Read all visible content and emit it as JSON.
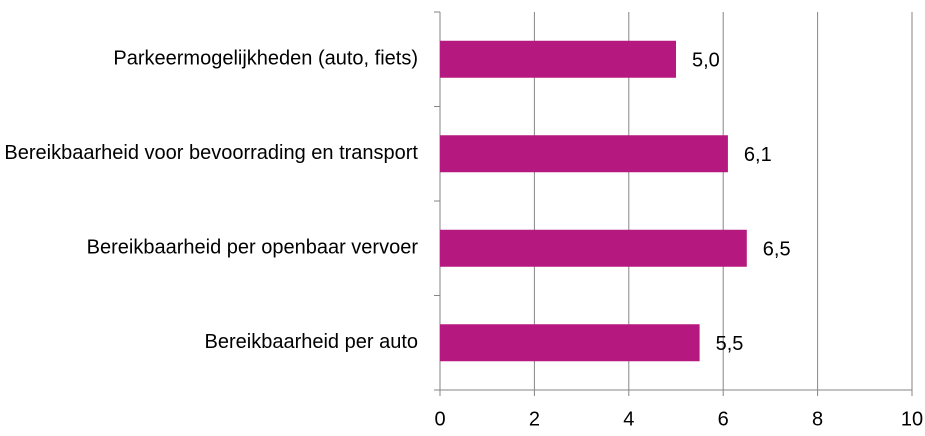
{
  "chart_data": {
    "type": "bar",
    "orientation": "horizontal",
    "categories": [
      "Parkeermogelijkheden (auto, fiets)",
      "Bereikbaarheid voor bevoorrading en transport",
      "Bereikbaarheid per openbaar vervoer",
      "Bereikbaarheid per auto"
    ],
    "values": [
      5.0,
      6.1,
      6.5,
      5.5
    ],
    "value_labels": [
      "5,0",
      "6,1",
      "6,5",
      "5,5"
    ],
    "color": "#b5197f",
    "xlim": [
      0,
      10
    ],
    "xticks": [
      0,
      2,
      4,
      6,
      8,
      10
    ],
    "grid": true
  }
}
